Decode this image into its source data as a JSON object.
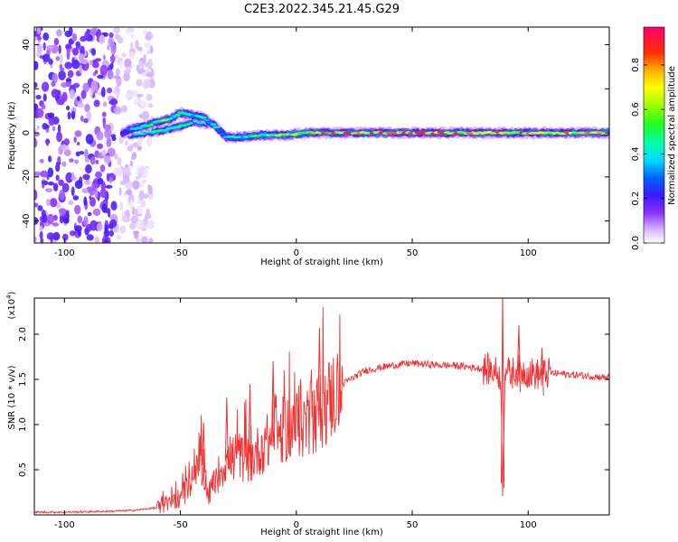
{
  "title": "C2E3.2022.345.21.45.G29",
  "chart_data": [
    {
      "type": "heatmap",
      "xlabel": "Height of straight line (km)",
      "ylabel": "Frequency (Hz)",
      "xlim": [
        -113,
        135
      ],
      "ylim": [
        -50,
        48
      ],
      "xticks": [
        -100,
        -50,
        0,
        50,
        100
      ],
      "yticks": [
        -40,
        -20,
        0,
        20,
        40
      ],
      "colorbar": {
        "label": "Normalized spectral amplitude",
        "range": [
          0,
          0.97
        ],
        "ticks": [
          0.0,
          0.2,
          0.4,
          0.6,
          0.8
        ]
      },
      "noise_region_x": [
        -113,
        -68
      ],
      "signal_ridge": [
        {
          "x": -75,
          "y": 0,
          "amp": 0.3
        },
        {
          "x": -70,
          "y": 2,
          "amp": 0.45
        },
        {
          "x": -65,
          "y": 3,
          "amp": 0.55
        },
        {
          "x": -60,
          "y": 5,
          "amp": 0.6
        },
        {
          "x": -55,
          "y": 6,
          "amp": 0.6
        },
        {
          "x": -50,
          "y": 9,
          "amp": 0.55
        },
        {
          "x": -45,
          "y": 8,
          "amp": 0.5
        },
        {
          "x": -40,
          "y": 7,
          "amp": 0.5
        },
        {
          "x": -35,
          "y": 3,
          "amp": 0.45
        },
        {
          "x": -30,
          "y": -2,
          "amp": 0.4
        },
        {
          "x": -25,
          "y": -2,
          "amp": 0.5
        },
        {
          "x": -15,
          "y": -1,
          "amp": 0.6
        },
        {
          "x": -5,
          "y": -1,
          "amp": 0.65
        },
        {
          "x": 5,
          "y": 0,
          "amp": 0.8
        },
        {
          "x": 20,
          "y": 0,
          "amp": 0.9
        },
        {
          "x": 40,
          "y": 0,
          "amp": 0.92
        },
        {
          "x": 60,
          "y": 0,
          "amp": 0.92
        },
        {
          "x": 80,
          "y": 0,
          "amp": 0.9
        },
        {
          "x": 100,
          "y": 0,
          "amp": 0.88
        },
        {
          "x": 120,
          "y": 0,
          "amp": 0.88
        },
        {
          "x": 135,
          "y": 0,
          "amp": 0.85
        }
      ],
      "secondary_ridge": [
        {
          "x": -72,
          "y": -1,
          "amp": 0.45
        },
        {
          "x": -65,
          "y": 0,
          "amp": 0.5
        },
        {
          "x": -58,
          "y": 1,
          "amp": 0.55
        },
        {
          "x": -50,
          "y": 3,
          "amp": 0.55
        },
        {
          "x": -44,
          "y": 5,
          "amp": 0.5
        },
        {
          "x": -38,
          "y": 4,
          "amp": 0.45
        }
      ]
    },
    {
      "type": "line",
      "xlabel": "Height of straight line (km)",
      "ylabel": "SNR (10 * v/v)",
      "yscale_label": "(x10",
      "yscale_exp": "4",
      "yscale_close": ")",
      "xlim": [
        -113,
        135
      ],
      "ylim": [
        0,
        2.4
      ],
      "xticks": [
        -100,
        -50,
        0,
        50,
        100
      ],
      "yticks": [
        0.5,
        1.0,
        1.5,
        2.0
      ],
      "series": [
        {
          "color": "#ee3333",
          "x": [
            -113,
            -100,
            -80,
            -70,
            -60,
            -55,
            -50,
            -45,
            -42,
            -40,
            -38,
            -35,
            -30,
            -25,
            -20,
            -15,
            -10,
            -5,
            0,
            5,
            10,
            15,
            20,
            30,
            40,
            50,
            60,
            70,
            80,
            85,
            88,
            89,
            90,
            92,
            95,
            100,
            105,
            110,
            120,
            130,
            135
          ],
          "y": [
            0.03,
            0.03,
            0.04,
            0.05,
            0.08,
            0.12,
            0.2,
            0.3,
            0.5,
            0.55,
            0.2,
            0.4,
            0.6,
            0.65,
            0.6,
            0.75,
            0.85,
            0.95,
            1.0,
            1.05,
            1.15,
            1.3,
            1.45,
            1.6,
            1.65,
            1.68,
            1.66,
            1.65,
            1.62,
            1.6,
            1.55,
            0.35,
            1.65,
            1.55,
            1.6,
            1.58,
            1.55,
            1.57,
            1.55,
            1.53,
            1.52
          ]
        }
      ],
      "spikes": [
        {
          "x": -40,
          "y": 1.02
        },
        {
          "x": -30,
          "y": 1.3
        },
        {
          "x": -20,
          "y": 1.45
        },
        {
          "x": -10,
          "y": 1.7
        },
        {
          "x": 10,
          "y": 2.07
        },
        {
          "x": 89,
          "y": 2.45
        },
        {
          "x": 96,
          "y": 2.1
        },
        {
          "x": 106,
          "y": 1.85
        }
      ]
    }
  ]
}
